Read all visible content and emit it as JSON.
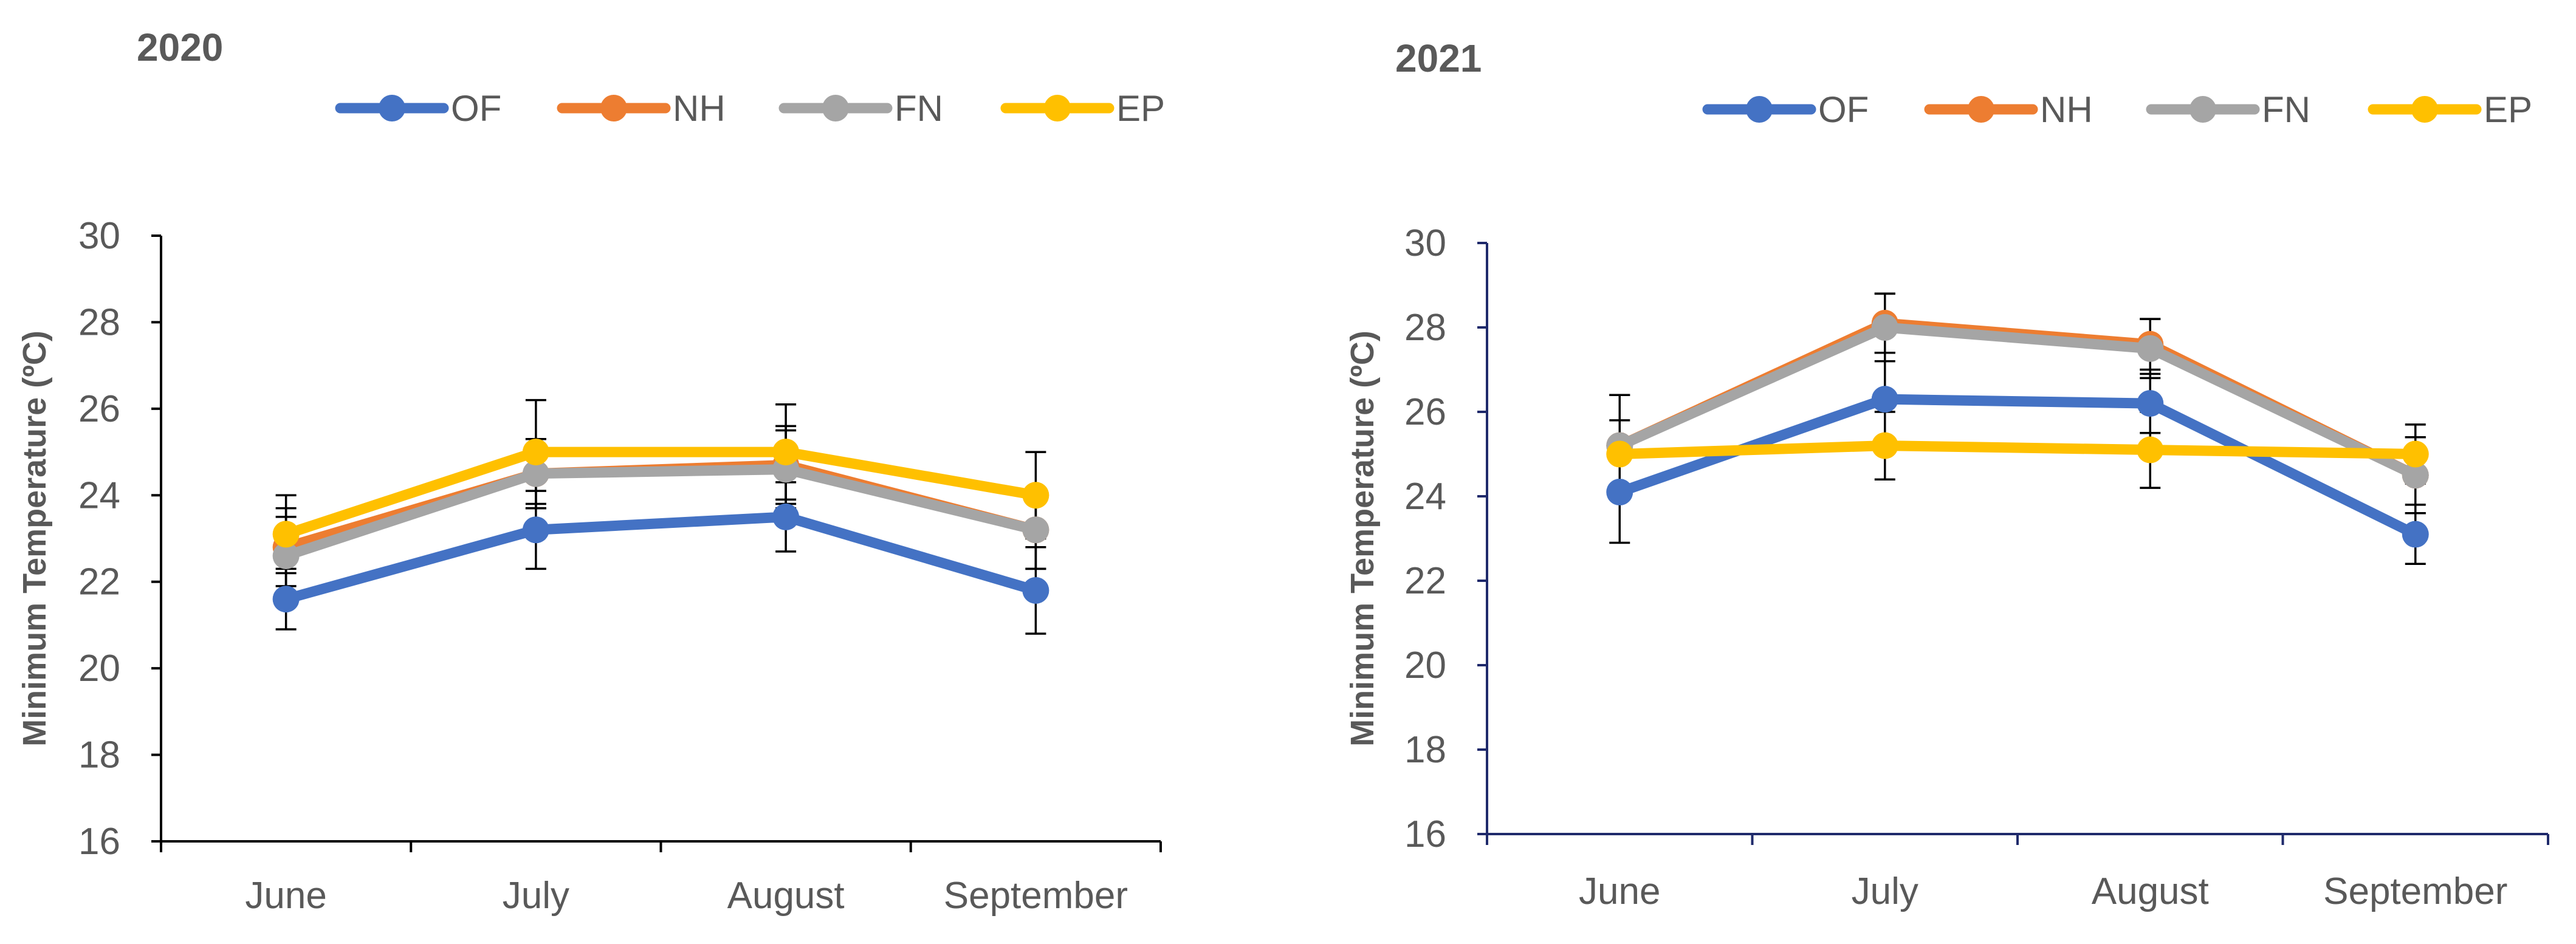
{
  "chart_data": [
    {
      "type": "line",
      "title": "2020",
      "xlabel": "",
      "ylabel": "Minimum Temperature (ºC)",
      "categories": [
        "June",
        "July",
        "August",
        "September"
      ],
      "ylim": [
        16,
        30
      ],
      "yticks": [
        16,
        18,
        20,
        22,
        24,
        26,
        28,
        30
      ],
      "yticks_labels": [
        "16",
        "18",
        "20",
        "22",
        "24",
        "26",
        "28",
        "30"
      ],
      "axis_color": "#000000",
      "legend_position": "top",
      "series": [
        {
          "name": "OF",
          "color": "#4472C4",
          "values": [
            21.6,
            23.2,
            23.5,
            21.8
          ],
          "error": [
            0.7,
            0.9,
            0.8,
            1.0
          ]
        },
        {
          "name": "NH",
          "color": "#ED7D31",
          "values": [
            22.8,
            24.5,
            24.7,
            23.2
          ],
          "error": [
            0.9,
            0.8,
            0.9,
            0.9
          ]
        },
        {
          "name": "FN",
          "color": "#A5A5A5",
          "values": [
            22.6,
            24.5,
            24.6,
            23.2
          ],
          "error": [
            0.9,
            0.8,
            0.9,
            0.9
          ]
        },
        {
          "name": "EP",
          "color": "#FFC000",
          "values": [
            23.1,
            25.0,
            25.0,
            24.0
          ],
          "error": [
            0.9,
            1.2,
            1.1,
            1.0
          ]
        }
      ]
    },
    {
      "type": "line",
      "title": "2021",
      "xlabel": "",
      "ylabel": "Minimum Temperature (ºC)",
      "categories": [
        "June",
        "July",
        "August",
        "September"
      ],
      "ylim": [
        16,
        30
      ],
      "yticks": [
        16,
        18,
        20,
        22,
        24,
        26,
        28,
        30
      ],
      "yticks_labels": [
        "16",
        "18",
        "20",
        "22",
        "24",
        "26",
        "28",
        "30"
      ],
      "axis_color": "#1F2A6B",
      "legend_position": "top",
      "series": [
        {
          "name": "OF",
          "color": "#4472C4",
          "values": [
            24.1,
            26.3,
            26.2,
            23.1
          ],
          "error": [
            1.2,
            1.1,
            0.7,
            0.7
          ]
        },
        {
          "name": "NH",
          "color": "#ED7D31",
          "values": [
            25.2,
            28.1,
            27.6,
            24.5
          ],
          "error": [
            1.2,
            0.7,
            0.6,
            0.9
          ]
        },
        {
          "name": "FN",
          "color": "#A5A5A5",
          "values": [
            25.2,
            28.0,
            27.5,
            24.5
          ],
          "error": [
            1.2,
            0.8,
            0.7,
            0.9
          ]
        },
        {
          "name": "EP",
          "color": "#FFC000",
          "values": [
            25.0,
            25.2,
            25.1,
            25.0
          ],
          "error": [
            0.8,
            0.8,
            0.9,
            0.7
          ]
        }
      ]
    }
  ]
}
